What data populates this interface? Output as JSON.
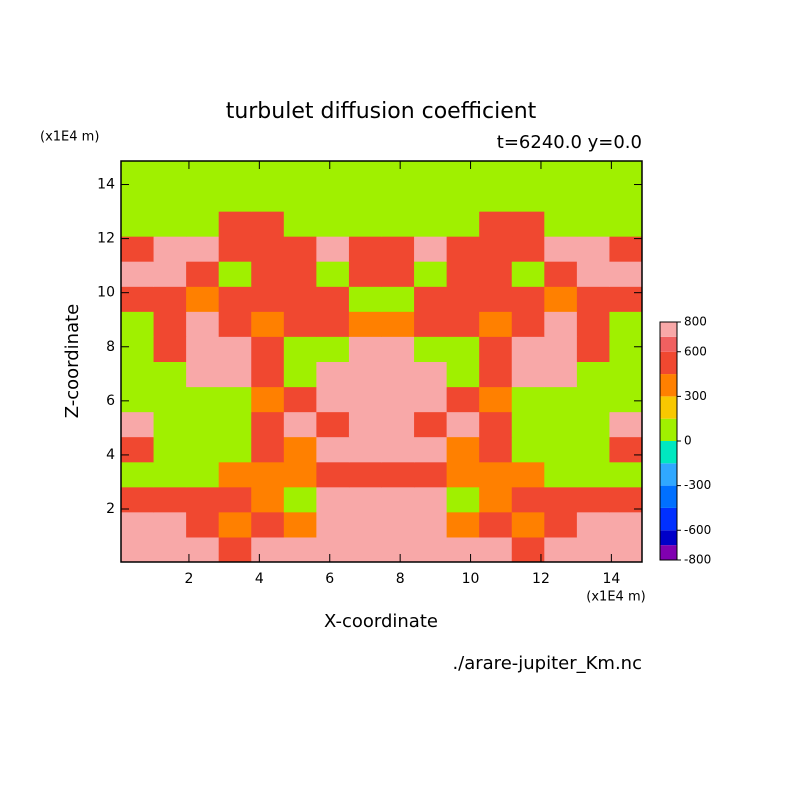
{
  "chart_data": {
    "type": "contour",
    "title": "turbulet diffusion coefficient",
    "subtitle": "t=6240.0 y=0.0",
    "x_label": "X-coordinate",
    "y_label": "Z-coordinate",
    "x_unit": "(x1E4 m)",
    "y_unit": "(x1E4 m)",
    "source": "./arare-jupiter_Km.nc",
    "xlim": [
      0.07,
      14.87
    ],
    "ylim": [
      0.04,
      14.87
    ],
    "xticks": [
      2,
      4,
      6,
      8,
      10,
      12,
      14
    ],
    "yticks": [
      2,
      4,
      6,
      8,
      10,
      12,
      14
    ],
    "x": [
      0.53,
      1.46,
      2.38,
      3.31,
      4.23,
      5.16,
      6.08,
      7.01,
      7.93,
      8.86,
      9.78,
      10.71,
      11.63,
      12.56,
      13.48,
      14.41
    ],
    "y": [
      0.5,
      1.43,
      2.36,
      3.28,
      4.21,
      5.14,
      6.06,
      6.99,
      7.92,
      8.85,
      9.77,
      10.7,
      11.63,
      12.55,
      13.48,
      14.41
    ],
    "values": [
      [
        750,
        750,
        750,
        500,
        750,
        750,
        750,
        750,
        750,
        750,
        750,
        750,
        500,
        750,
        750,
        750
      ],
      [
        750,
        750,
        600,
        350,
        500,
        350,
        750,
        750,
        750,
        750,
        350,
        500,
        350,
        600,
        750,
        750
      ],
      [
        600,
        600,
        600,
        500,
        350,
        50,
        750,
        750,
        750,
        750,
        50,
        350,
        500,
        600,
        600,
        600
      ],
      [
        50,
        50,
        50,
        350,
        350,
        350,
        600,
        600,
        600,
        600,
        350,
        350,
        350,
        50,
        50,
        50
      ],
      [
        600,
        50,
        50,
        50,
        600,
        350,
        750,
        750,
        750,
        750,
        350,
        600,
        50,
        50,
        50,
        600
      ],
      [
        750,
        50,
        50,
        50,
        600,
        750,
        600,
        750,
        750,
        600,
        750,
        600,
        50,
        50,
        50,
        750
      ],
      [
        50,
        50,
        50,
        50,
        350,
        600,
        750,
        750,
        750,
        750,
        600,
        350,
        50,
        50,
        50,
        50
      ],
      [
        50,
        50,
        750,
        750,
        600,
        50,
        750,
        750,
        750,
        750,
        50,
        600,
        750,
        750,
        50,
        50
      ],
      [
        50,
        600,
        750,
        750,
        600,
        50,
        50,
        750,
        750,
        50,
        50,
        600,
        750,
        750,
        600,
        50
      ],
      [
        50,
        600,
        750,
        600,
        350,
        600,
        600,
        350,
        350,
        600,
        600,
        350,
        600,
        750,
        600,
        50
      ],
      [
        600,
        600,
        350,
        600,
        600,
        600,
        600,
        50,
        50,
        600,
        600,
        600,
        600,
        350,
        600,
        600
      ],
      [
        750,
        750,
        600,
        50,
        600,
        600,
        50,
        600,
        600,
        50,
        600,
        600,
        50,
        600,
        750,
        750
      ],
      [
        600,
        750,
        750,
        600,
        600,
        600,
        750,
        600,
        600,
        750,
        600,
        600,
        600,
        750,
        750,
        600
      ],
      [
        50,
        50,
        50,
        600,
        600,
        50,
        50,
        50,
        50,
        50,
        50,
        600,
        600,
        50,
        50,
        50
      ],
      [
        50,
        50,
        50,
        50,
        50,
        50,
        50,
        50,
        50,
        50,
        50,
        50,
        50,
        50,
        50,
        50
      ],
      [
        50,
        50,
        50,
        50,
        50,
        50,
        50,
        50,
        50,
        50,
        50,
        50,
        50,
        50,
        50,
        50
      ]
    ],
    "levels": [
      -800,
      -700,
      -600,
      -450,
      -300,
      -150,
      0,
      150,
      300,
      450,
      600,
      700,
      800
    ],
    "colors": [
      "#8000b0",
      "#0000c8",
      "#0030ff",
      "#0070ff",
      "#30a8ff",
      "#00e8c0",
      "#a0f000",
      "#f8c800",
      "#ff8000",
      "#f04830",
      "#f06060",
      "#f8a8a8"
    ],
    "colorbar_ticks": [
      -800,
      -600,
      -300,
      0,
      300,
      600,
      800
    ]
  }
}
